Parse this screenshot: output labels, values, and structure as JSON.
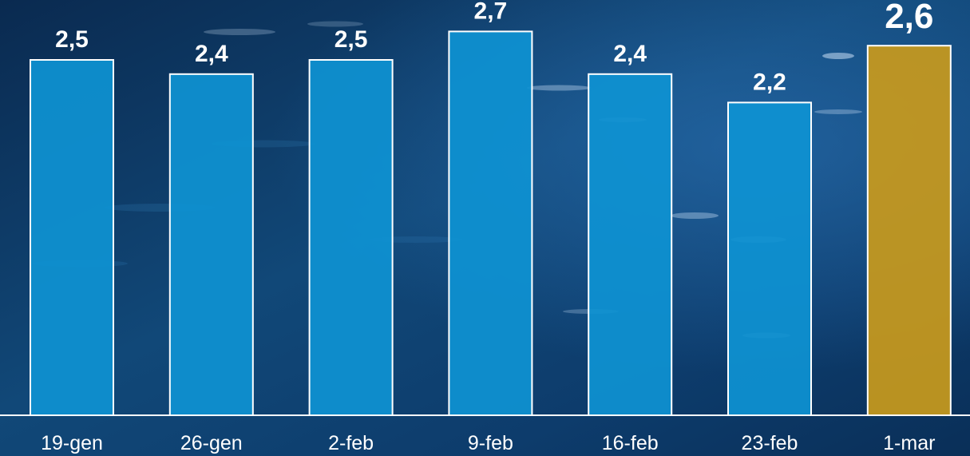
{
  "chart_data": {
    "type": "bar",
    "categories": [
      "19-gen",
      "26-gen",
      "2-feb",
      "9-feb",
      "16-feb",
      "23-feb",
      "1-mar"
    ],
    "values": [
      2.5,
      2.4,
      2.5,
      2.7,
      2.4,
      2.2,
      2.6
    ],
    "value_labels": [
      "2,5",
      "2,4",
      "2,5",
      "2,7",
      "2,4",
      "2,2",
      "2,6"
    ],
    "highlight_index": 6,
    "title": "",
    "xlabel": "",
    "ylabel": "",
    "grid": false,
    "legend": "none",
    "colors": {
      "bar": "#0e93d2",
      "highlight": "#c99a1c",
      "bar_outline": "#ffffff",
      "label": "#ffffff",
      "background_dark": "#0a2d55",
      "background_light": "#1a5a9a"
    }
  }
}
